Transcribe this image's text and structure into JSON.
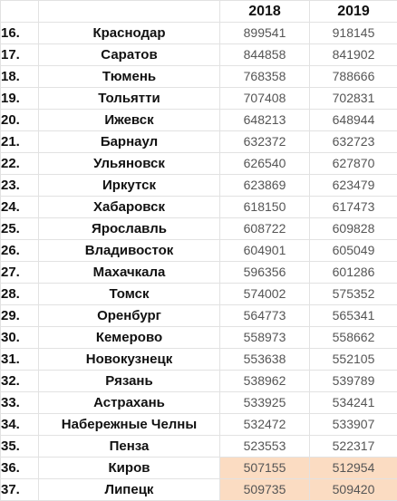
{
  "header": {
    "rank": "",
    "city": "",
    "year1": "2018",
    "year2": "2019"
  },
  "rows": [
    {
      "rank": "16.",
      "city": "Краснодар",
      "v2018": "899541",
      "v2019": "918145",
      "highlight": false
    },
    {
      "rank": "17.",
      "city": "Саратов",
      "v2018": "844858",
      "v2019": "841902",
      "highlight": false
    },
    {
      "rank": "18.",
      "city": "Тюмень",
      "v2018": "768358",
      "v2019": "788666",
      "highlight": false
    },
    {
      "rank": "19.",
      "city": "Тольятти",
      "v2018": "707408",
      "v2019": "702831",
      "highlight": false
    },
    {
      "rank": "20.",
      "city": "Ижевск",
      "v2018": "648213",
      "v2019": "648944",
      "highlight": false
    },
    {
      "rank": "21.",
      "city": "Барнаул",
      "v2018": "632372",
      "v2019": "632723",
      "highlight": false
    },
    {
      "rank": "22.",
      "city": "Ульяновск",
      "v2018": "626540",
      "v2019": "627870",
      "highlight": false
    },
    {
      "rank": "23.",
      "city": "Иркутск",
      "v2018": "623869",
      "v2019": "623479",
      "highlight": false
    },
    {
      "rank": "24.",
      "city": "Хабаровск",
      "v2018": "618150",
      "v2019": "617473",
      "highlight": false
    },
    {
      "rank": "25.",
      "city": "Ярославль",
      "v2018": "608722",
      "v2019": "609828",
      "highlight": false
    },
    {
      "rank": "26.",
      "city": "Владивосток",
      "v2018": "604901",
      "v2019": "605049",
      "highlight": false
    },
    {
      "rank": "27.",
      "city": "Махачкала",
      "v2018": "596356",
      "v2019": "601286",
      "highlight": false
    },
    {
      "rank": "28.",
      "city": "Томск",
      "v2018": "574002",
      "v2019": "575352",
      "highlight": false
    },
    {
      "rank": "29.",
      "city": "Оренбург",
      "v2018": "564773",
      "v2019": "565341",
      "highlight": false
    },
    {
      "rank": "30.",
      "city": "Кемерово",
      "v2018": "558973",
      "v2019": "558662",
      "highlight": false
    },
    {
      "rank": "31.",
      "city": "Новокузнецк",
      "v2018": "553638",
      "v2019": "552105",
      "highlight": false
    },
    {
      "rank": "32.",
      "city": "Рязань",
      "v2018": "538962",
      "v2019": "539789",
      "highlight": false
    },
    {
      "rank": "33.",
      "city": "Астрахань",
      "v2018": "533925",
      "v2019": "534241",
      "highlight": false
    },
    {
      "rank": "34.",
      "city": "Набережные Челны",
      "v2018": "532472",
      "v2019": "533907",
      "highlight": false
    },
    {
      "rank": "35.",
      "city": "Пенза",
      "v2018": "523553",
      "v2019": "522317",
      "highlight": false
    },
    {
      "rank": "36.",
      "city": "Киров",
      "v2018": "507155",
      "v2019": "512954",
      "highlight": true
    },
    {
      "rank": "37.",
      "city": "Липецк",
      "v2018": "509735",
      "v2019": "509420",
      "highlight": true
    }
  ],
  "colors": {
    "highlight": "#fbdcc2",
    "grid": "#e2e2e2"
  }
}
